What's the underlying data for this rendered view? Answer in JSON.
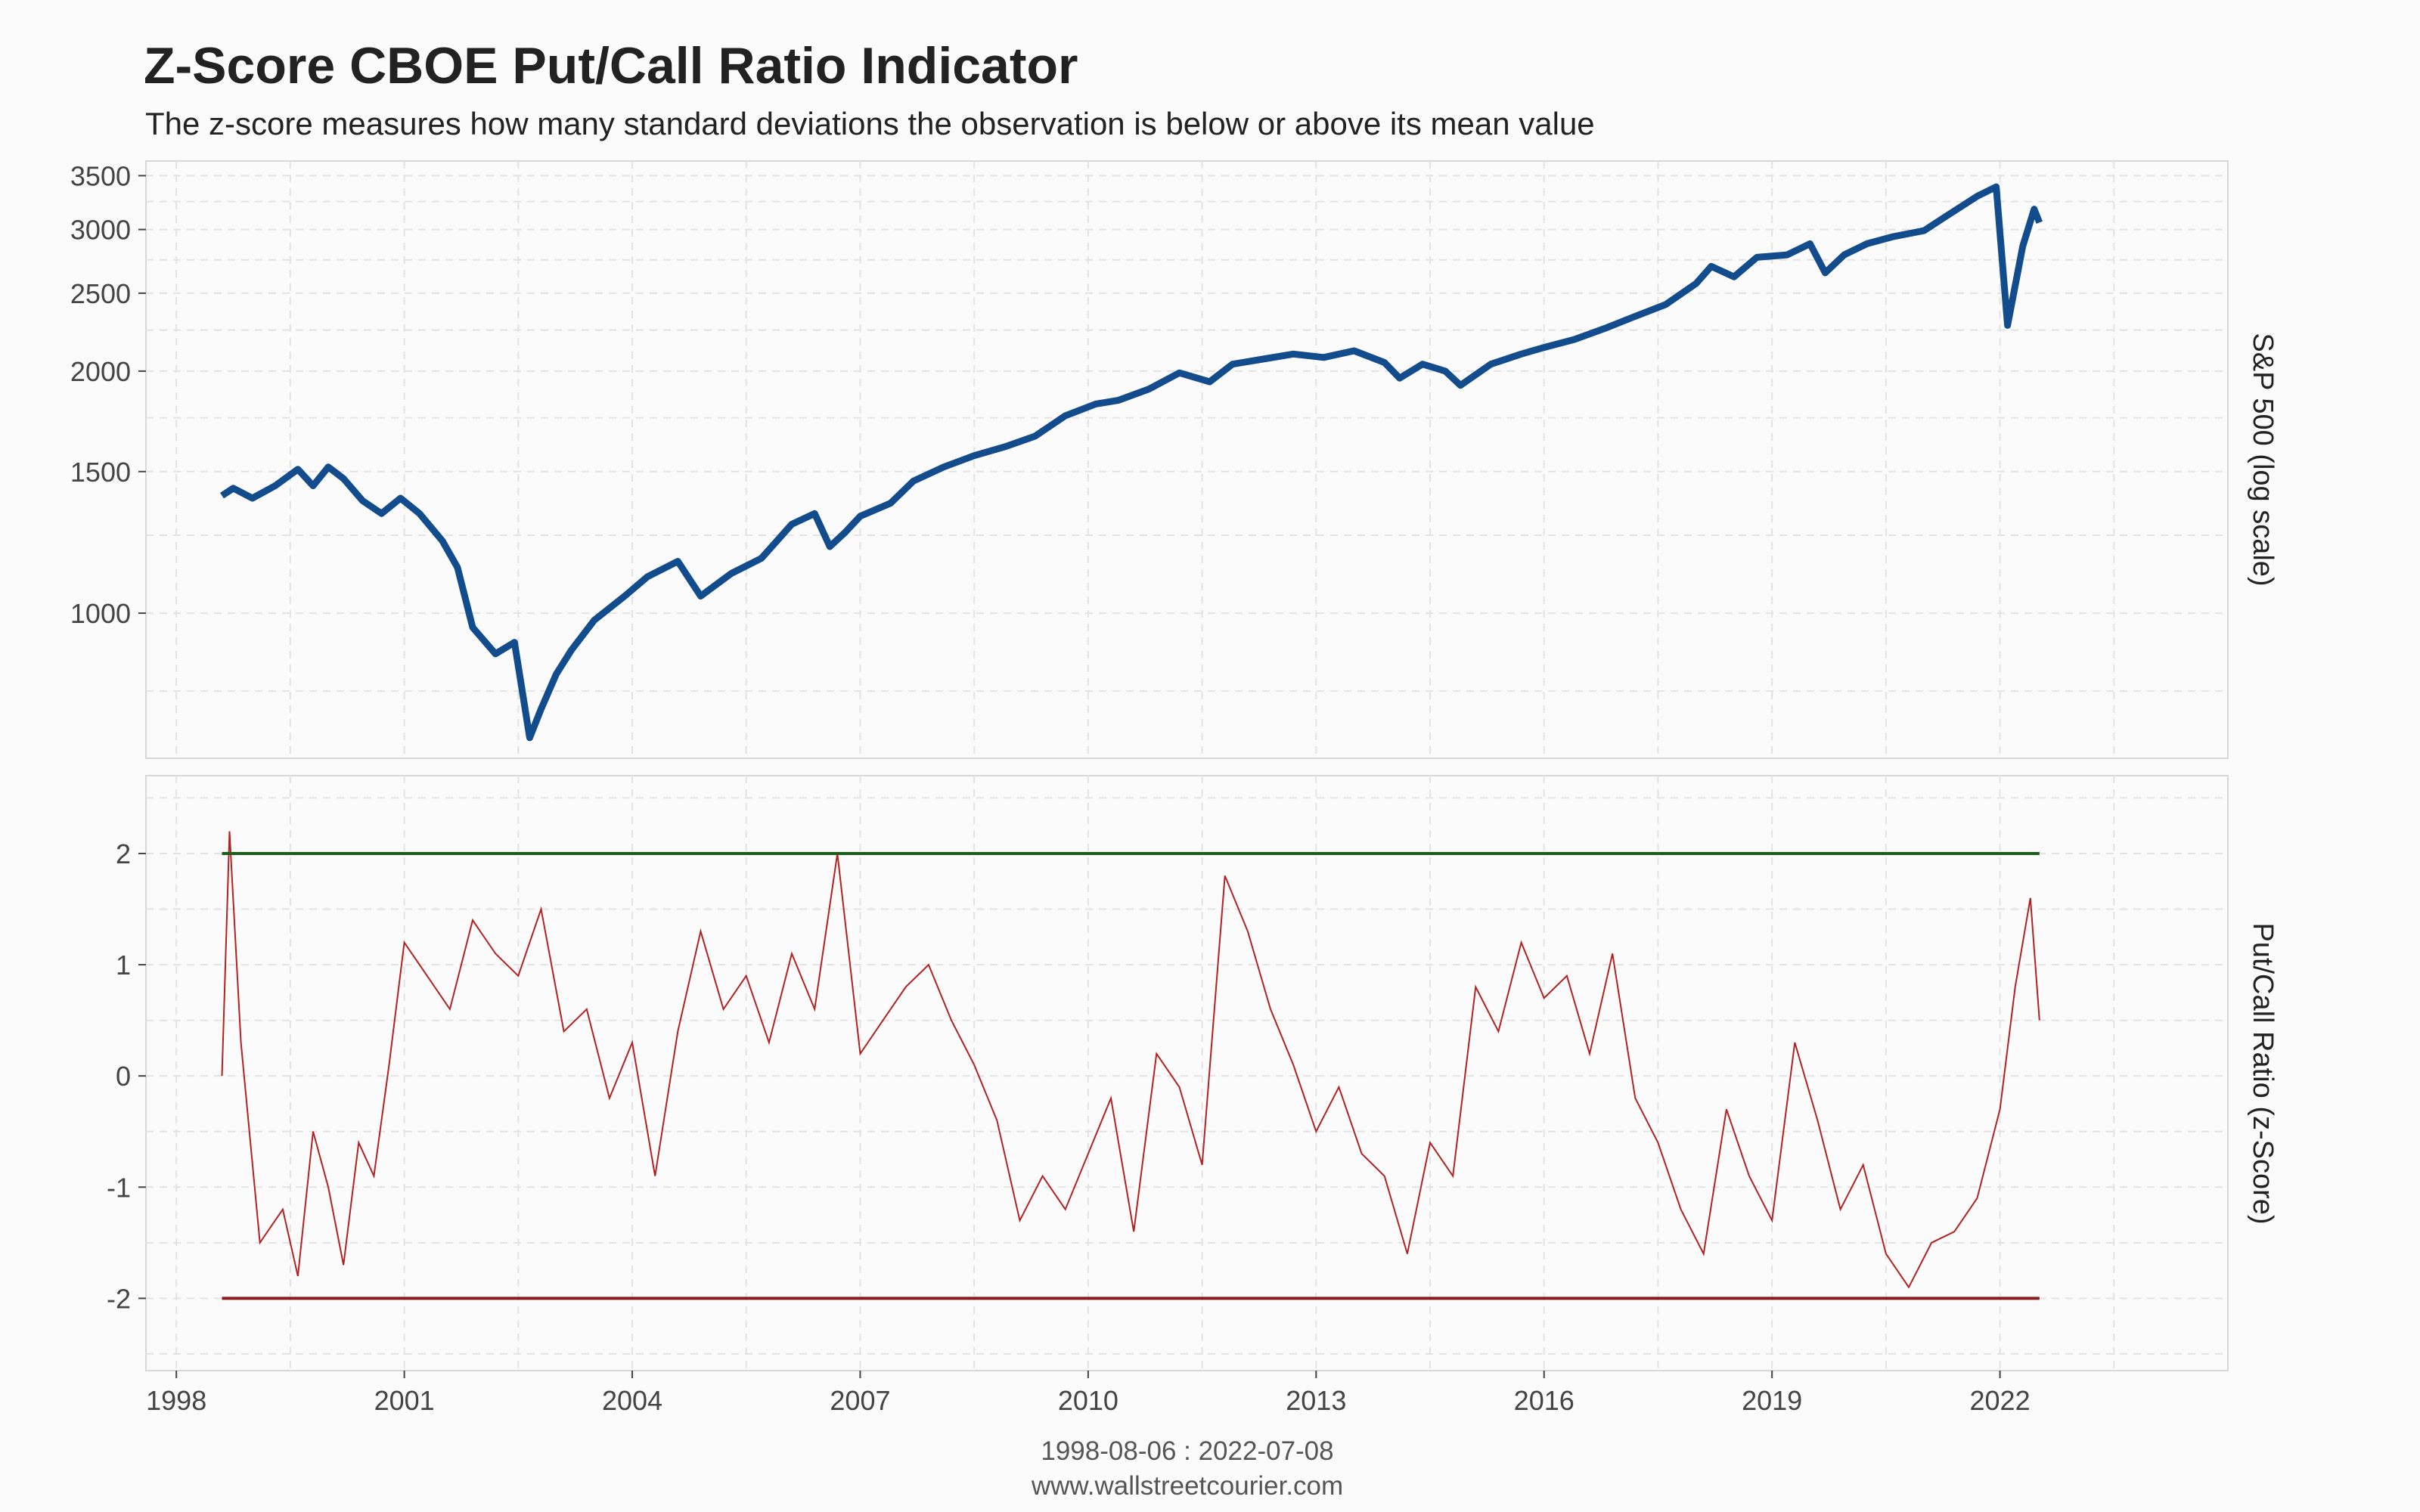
{
  "header": {
    "title": "Z-Score CBOE Put/Call Ratio Indicator",
    "subtitle": "The z-score measures how many standard deviations the observation is below or above its mean value"
  },
  "footer": {
    "date_range": "1998-08-06 : 2022-07-08",
    "source": "www.wallstreetcourier.com"
  },
  "colors": {
    "spx_line": "#124c8c",
    "zscore_line": "#b22222",
    "upper_threshold": "#1a5e1a",
    "lower_threshold": "#8b1a1a",
    "grid": "#e3e3e3",
    "panel_border": "#d8d8d8"
  },
  "chart_data": [
    {
      "type": "line",
      "panel": "top",
      "ylabel": "S&P 500 (log scale)",
      "y_scale": "log",
      "ylim": [
        660,
        3650
      ],
      "xlim": [
        1997.6,
        2025.0
      ],
      "yticks": [
        1000,
        1500,
        2000,
        2500,
        3000,
        3500
      ],
      "grid": true,
      "series": [
        {
          "x": [
            1998.6,
            1998.75,
            1999.0,
            1999.3,
            1999.6,
            1999.8,
            2000.0,
            2000.2,
            2000.45,
            2000.7,
            2000.95,
            2001.2,
            2001.5,
            2001.7,
            2001.9,
            2002.2,
            2002.45,
            2002.65,
            2002.8,
            2003.0,
            2003.2,
            2003.5,
            2003.9,
            2004.2,
            2004.6,
            2004.9,
            2005.3,
            2005.7,
            2006.1,
            2006.4,
            2006.6,
            2006.8,
            2007.0,
            2007.4,
            2007.7,
            2008.1,
            2008.5,
            2008.9,
            2009.3,
            2009.7,
            2010.1,
            2010.4,
            2010.8,
            2011.2,
            2011.6,
            2011.9,
            2012.3,
            2012.7,
            2013.1,
            2013.5,
            2013.9,
            2014.1,
            2014.4,
            2014.7,
            2014.9,
            2015.3,
            2015.7,
            2016.0,
            2016.4,
            2016.8,
            2017.2,
            2017.6,
            2018.0,
            2018.2,
            2018.5,
            2018.8,
            2019.2,
            2019.5,
            2019.7,
            2019.95,
            2020.25,
            2020.6,
            2021.0,
            2021.3,
            2021.7,
            2021.95,
            2022.1,
            2022.3,
            2022.45,
            2022.52
          ],
          "y": [
            1400,
            1430,
            1390,
            1440,
            1510,
            1440,
            1520,
            1470,
            1380,
            1330,
            1390,
            1330,
            1230,
            1140,
            960,
            890,
            920,
            700,
            760,
            840,
            900,
            980,
            1050,
            1110,
            1160,
            1050,
            1120,
            1170,
            1290,
            1330,
            1210,
            1260,
            1320,
            1370,
            1460,
            1520,
            1570,
            1610,
            1660,
            1760,
            1820,
            1840,
            1900,
            1990,
            1940,
            2040,
            2070,
            2100,
            2080,
            2120,
            2050,
            1960,
            2040,
            2000,
            1920,
            2040,
            2100,
            2140,
            2190,
            2260,
            2340,
            2420,
            2570,
            2700,
            2620,
            2770,
            2790,
            2880,
            2650,
            2790,
            2880,
            2940,
            2990,
            3120,
            3300,
            3390,
            2280,
            2860,
            3180,
            3060
          ]
        }
      ]
    },
    {
      "type": "line",
      "panel": "bottom",
      "ylabel": "Put/Call Ratio (z-Score)",
      "ylim": [
        -2.65,
        2.7
      ],
      "xlim": [
        1997.6,
        2025.0
      ],
      "yticks": [
        -2,
        -1,
        0,
        1,
        2
      ],
      "xticks": [
        1998,
        2001,
        2004,
        2007,
        2010,
        2013,
        2016,
        2019,
        2022
      ],
      "grid": true,
      "thresholds": [
        {
          "y": 2,
          "x": [
            1998.6,
            2022.52
          ]
        },
        {
          "y": -2,
          "x": [
            1998.6,
            2022.52
          ]
        }
      ],
      "series": [
        {
          "x": [
            1998.6,
            1998.7,
            1998.85,
            1999.1,
            1999.4,
            1999.6,
            1999.8,
            2000.0,
            2000.2,
            2000.4,
            2000.6,
            2000.8,
            2001.0,
            2001.3,
            2001.6,
            2001.9,
            2002.2,
            2002.5,
            2002.8,
            2003.1,
            2003.4,
            2003.7,
            2004.0,
            2004.3,
            2004.6,
            2004.9,
            2005.2,
            2005.5,
            2005.8,
            2006.1,
            2006.4,
            2006.7,
            2007.0,
            2007.3,
            2007.6,
            2007.9,
            2008.2,
            2008.5,
            2008.8,
            2009.1,
            2009.4,
            2009.7,
            2010.0,
            2010.3,
            2010.6,
            2010.9,
            2011.2,
            2011.5,
            2011.8,
            2012.1,
            2012.4,
            2012.7,
            2013.0,
            2013.3,
            2013.6,
            2013.9,
            2014.2,
            2014.5,
            2014.8,
            2015.1,
            2015.4,
            2015.7,
            2016.0,
            2016.3,
            2016.6,
            2016.9,
            2017.2,
            2017.5,
            2017.8,
            2018.1,
            2018.4,
            2018.7,
            2019.0,
            2019.3,
            2019.6,
            2019.9,
            2020.2,
            2020.5,
            2020.8,
            2021.1,
            2021.4,
            2021.7,
            2022.0,
            2022.2,
            2022.4,
            2022.52
          ],
          "y": [
            0.0,
            2.2,
            0.3,
            -1.5,
            -1.2,
            -1.8,
            -0.5,
            -1.0,
            -1.7,
            -0.6,
            -0.9,
            0.1,
            1.2,
            0.9,
            0.6,
            1.4,
            1.1,
            0.9,
            1.5,
            0.4,
            0.6,
            -0.2,
            0.3,
            -0.9,
            0.4,
            1.3,
            0.6,
            0.9,
            0.3,
            1.1,
            0.6,
            2.0,
            0.2,
            0.5,
            0.8,
            1.0,
            0.5,
            0.1,
            -0.4,
            -1.3,
            -0.9,
            -1.2,
            -0.7,
            -0.2,
            -1.4,
            0.2,
            -0.1,
            -0.8,
            1.8,
            1.3,
            0.6,
            0.1,
            -0.5,
            -0.1,
            -0.7,
            -0.9,
            -1.6,
            -0.6,
            -0.9,
            0.8,
            0.4,
            1.2,
            0.7,
            0.9,
            0.2,
            1.1,
            -0.2,
            -0.6,
            -1.2,
            -1.6,
            -0.3,
            -0.9,
            -1.3,
            0.3,
            -0.4,
            -1.2,
            -0.8,
            -1.6,
            -1.9,
            -1.5,
            -1.4,
            -1.1,
            -0.3,
            0.8,
            1.6,
            0.5
          ]
        }
      ]
    }
  ]
}
